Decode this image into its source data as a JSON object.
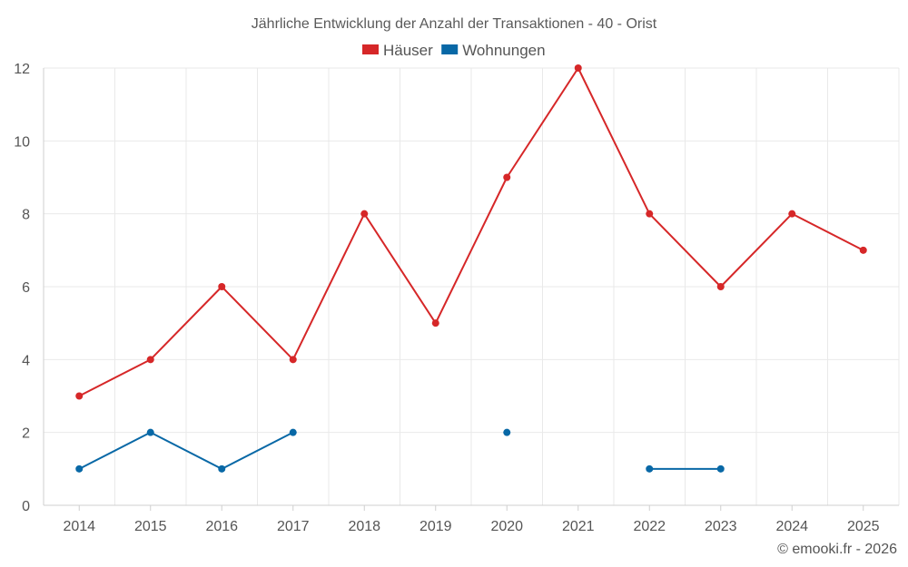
{
  "chart_data": {
    "type": "line",
    "title": "Jährliche Entwicklung der Anzahl der Transaktionen - 40 - Orist",
    "categories": [
      "2014",
      "2015",
      "2016",
      "2017",
      "2018",
      "2019",
      "2020",
      "2021",
      "2022",
      "2023",
      "2024",
      "2025"
    ],
    "series": [
      {
        "name": "Häuser",
        "color": "#d62728",
        "values": [
          3,
          4,
          6,
          4,
          8,
          5,
          9,
          12,
          8,
          6,
          8,
          7
        ]
      },
      {
        "name": "Wohnungen",
        "color": "#0868a6",
        "values": [
          1,
          2,
          1,
          2,
          null,
          null,
          2,
          null,
          1,
          1,
          null,
          null
        ]
      }
    ],
    "ylim": [
      0,
      12
    ],
    "yticks": [
      0,
      2,
      4,
      6,
      8,
      10,
      12
    ],
    "grid": true,
    "legend": "top-center",
    "xlabel": "",
    "ylabel": ""
  },
  "credit": "© emooki.fr - 2026"
}
